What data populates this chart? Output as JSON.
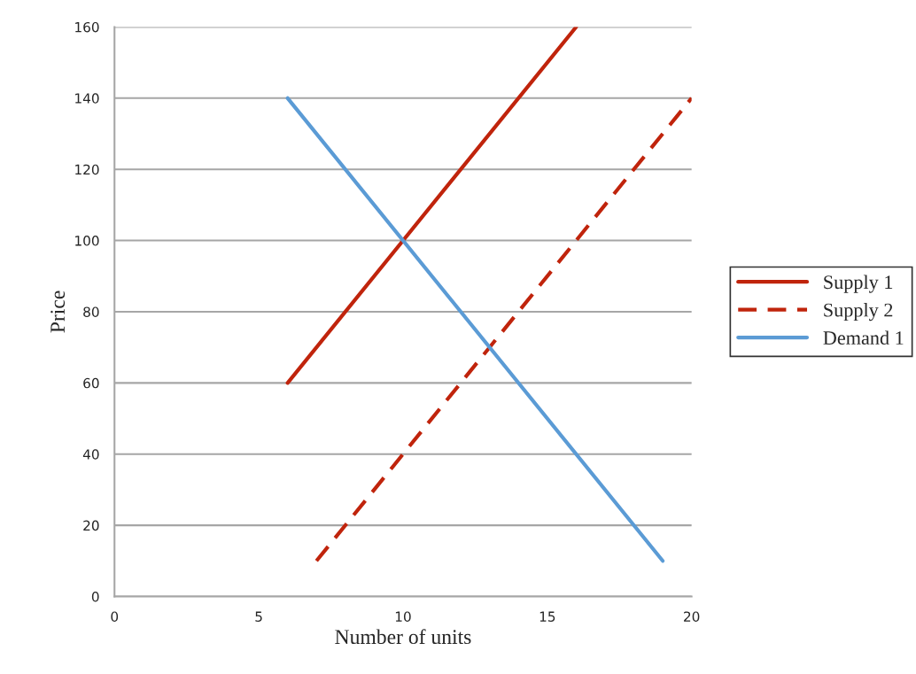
{
  "chart_data": {
    "type": "line",
    "xlabel": "Number of units",
    "ylabel": "Price",
    "xlim": [
      0,
      20
    ],
    "xticks": [
      0,
      5,
      10,
      15,
      20
    ],
    "ylim": [
      0,
      160
    ],
    "yticks": [
      0,
      20,
      40,
      60,
      80,
      100,
      120,
      140,
      160
    ],
    "grid": "y",
    "legend": "right",
    "series": [
      {
        "name": "Supply 1",
        "color": "#c0240c",
        "x": [
          6,
          16
        ],
        "values": [
          60,
          160
        ],
        "line_style": "solid"
      },
      {
        "name": "Supply 2",
        "color": "#c0240c",
        "x": [
          7,
          20
        ],
        "values": [
          10,
          140
        ],
        "line_style": "dashed"
      },
      {
        "name": "Demand 1",
        "color": "#5b9bd5",
        "x": [
          6,
          19
        ],
        "values": [
          140,
          10
        ],
        "line_style": "solid"
      }
    ]
  }
}
